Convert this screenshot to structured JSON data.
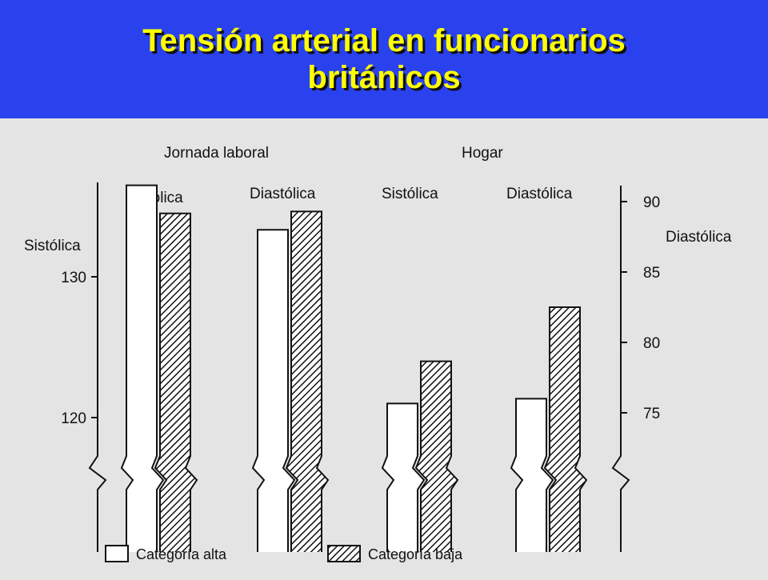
{
  "title_line1": "Tensión arterial en funcionarios",
  "title_line2": "británicos",
  "colors": {
    "title_band": "#2a41ee",
    "title_text": "#ffff00",
    "paper": "#e4e4e4",
    "ink": "#111111"
  },
  "chart_data": {
    "type": "bar",
    "groups": [
      "Jornada laboral",
      "Hogar"
    ],
    "subgroups": [
      "Sistólica",
      "Diastólica",
      "Sistólica",
      "Diastólica"
    ],
    "series": [
      {
        "name": "Categoría alta",
        "pattern": "white",
        "values": [
          136.5,
          88.0,
          121.0,
          76.0
        ]
      },
      {
        "name": "Categoría baja",
        "pattern": "hatched",
        "values": [
          134.5,
          89.3,
          124.0,
          82.5
        ]
      }
    ],
    "axis_left": {
      "label": "Sistólica",
      "ticks": [
        120,
        130
      ],
      "ylim": [
        115,
        140
      ]
    },
    "axis_right": {
      "label": "Diastólica",
      "ticks": [
        75,
        80,
        85,
        90
      ],
      "ylim": [
        72,
        91
      ]
    },
    "broken_axis": true,
    "legend": {
      "placement": "bottom"
    }
  }
}
